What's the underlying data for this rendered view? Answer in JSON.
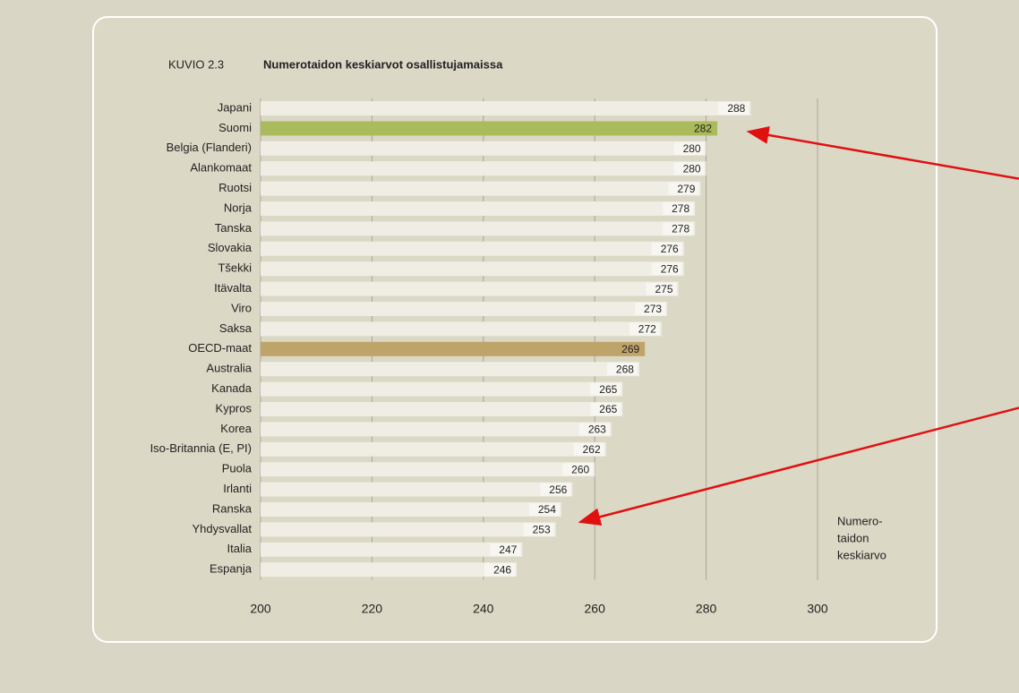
{
  "chart_data": {
    "type": "hbar",
    "title_prefix": "KUVIO 2.3",
    "title": "Numerotaidon keskiarvot osallistujamaissa",
    "xlabel": [
      "Numero-",
      "taidon",
      "keskiarvo"
    ],
    "categories": [
      "Japani",
      "Suomi",
      "Belgia (Flanderi)",
      "Alankomaat",
      "Ruotsi",
      "Norja",
      "Tanska",
      "Slovakia",
      "Tšekki",
      "Itävalta",
      "Viro",
      "Saksa",
      "OECD-maat",
      "Australia",
      "Kanada",
      "Kypros",
      "Korea",
      "Iso-Britannia (E, PI)",
      "Puola",
      "Irlanti",
      "Ranska",
      "Yhdysvallat",
      "Italia",
      "Espanja"
    ],
    "values": [
      288,
      282,
      280,
      280,
      279,
      278,
      278,
      276,
      276,
      275,
      273,
      272,
      269,
      268,
      265,
      265,
      263,
      262,
      260,
      256,
      254,
      253,
      247,
      246
    ],
    "bar_colors": [
      "#efede4",
      "#a9bb5a",
      "#efede4",
      "#efede4",
      "#efede4",
      "#efede4",
      "#efede4",
      "#efede4",
      "#efede4",
      "#efede4",
      "#efede4",
      "#efede4",
      "#bfa46a",
      "#efede4",
      "#efede4",
      "#efede4",
      "#efede4",
      "#efede4",
      "#efede4",
      "#efede4",
      "#efede4",
      "#efede4",
      "#efede4",
      "#efede4"
    ],
    "xlim": [
      200,
      300
    ],
    "xticks": [
      200,
      220,
      240,
      260,
      280,
      300
    ],
    "grid": true
  }
}
